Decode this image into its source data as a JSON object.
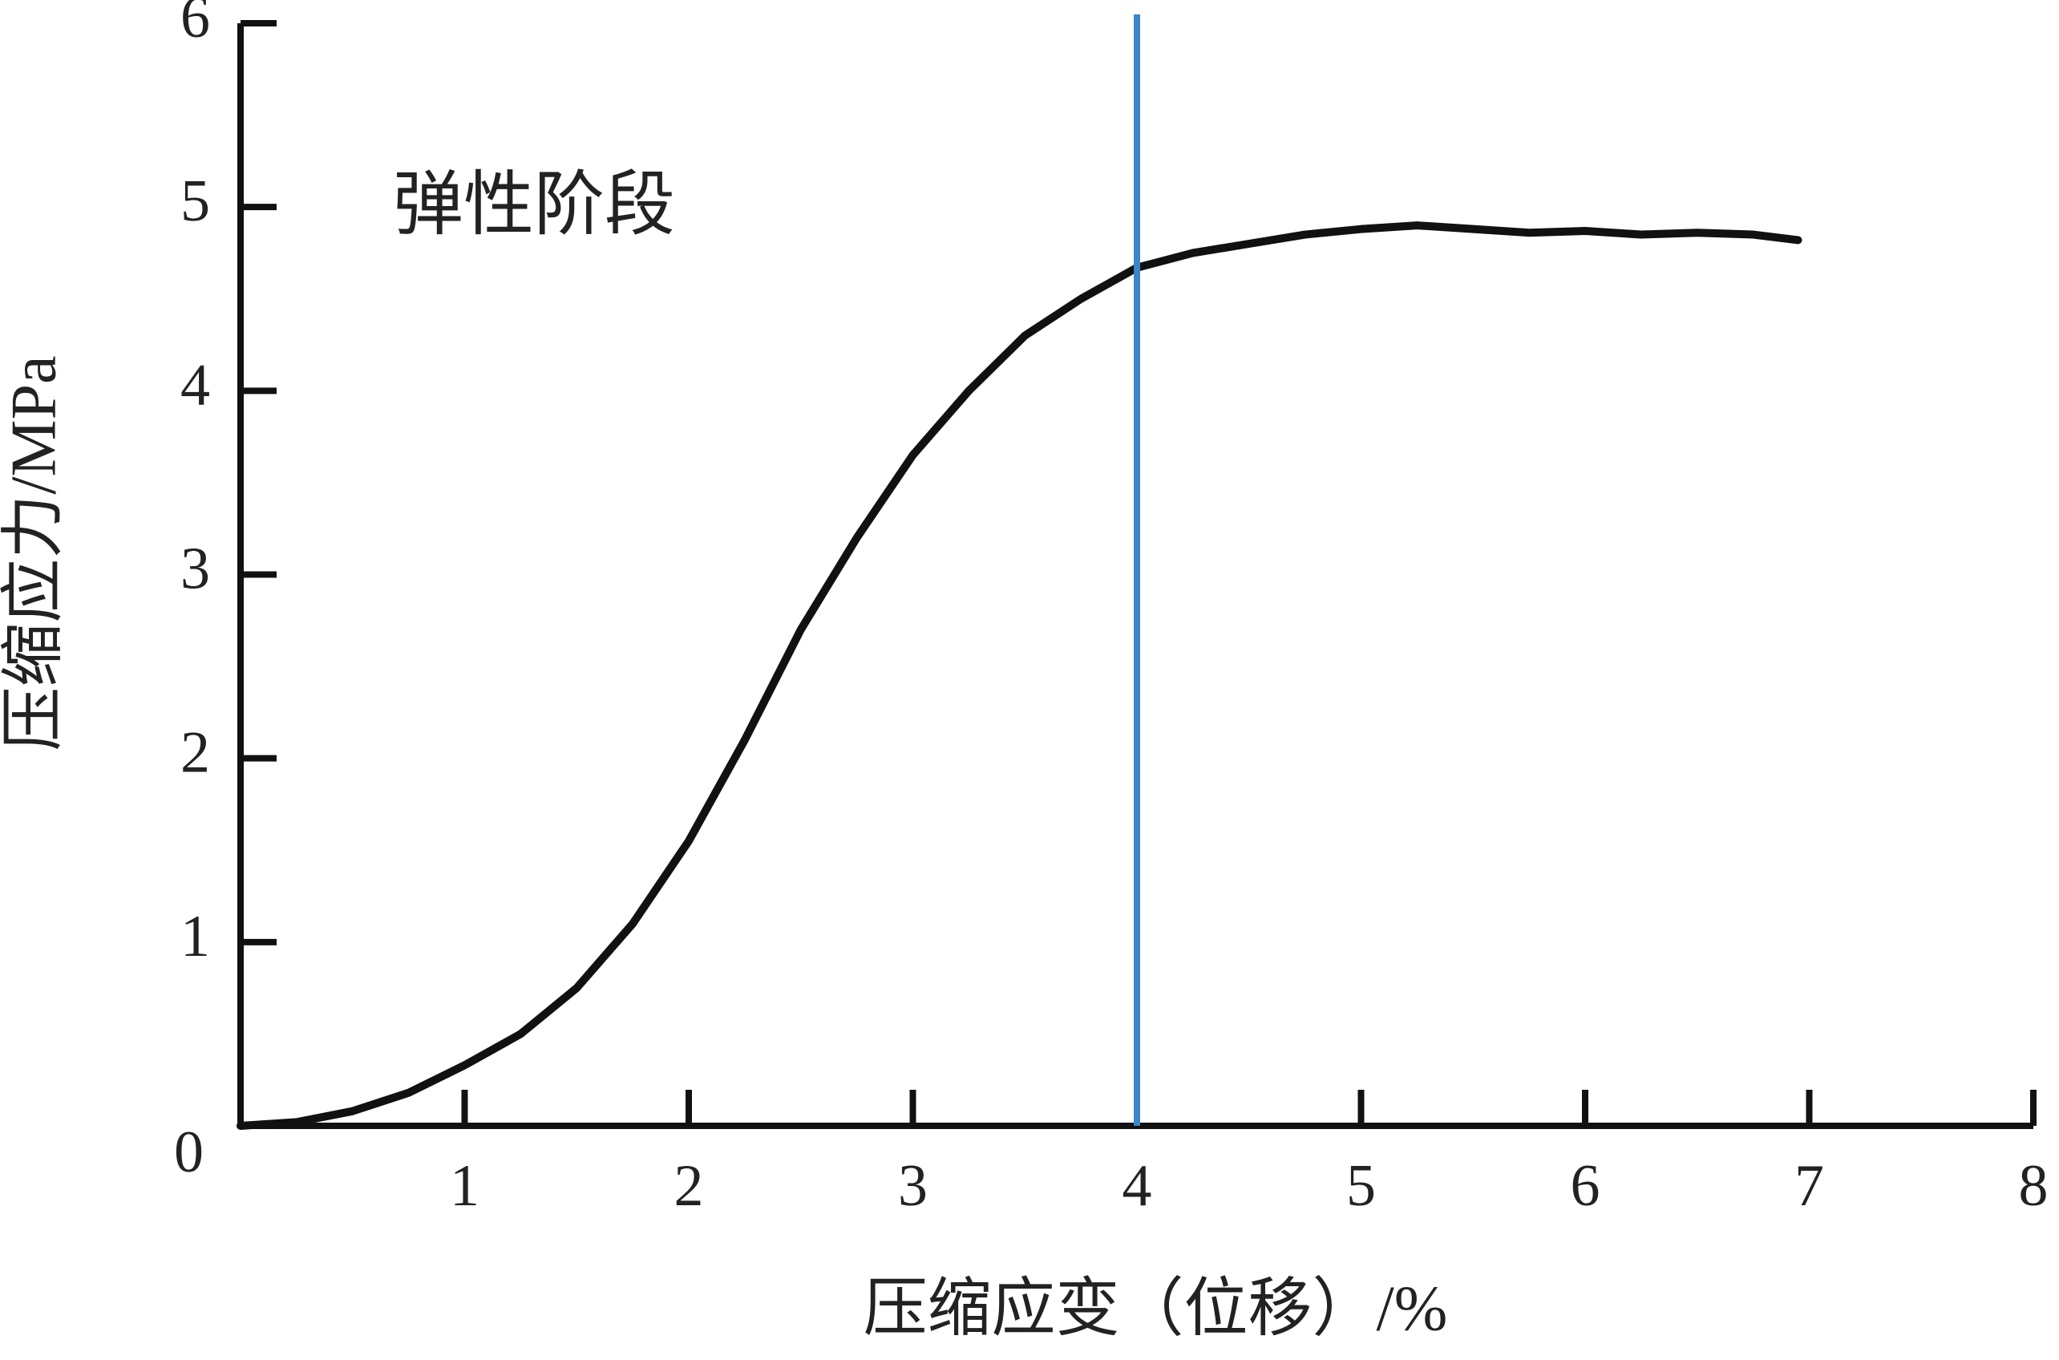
{
  "chart_data": {
    "type": "line",
    "xlabel": "压缩应变（位移）/%",
    "ylabel": "压缩应力/MPa",
    "annotation": "弹性阶段",
    "vline": 4,
    "vline_color": "#3a86c8",
    "x": [
      0,
      0.25,
      0.5,
      0.75,
      1,
      1.25,
      1.5,
      1.75,
      2,
      2.25,
      2.5,
      2.75,
      3,
      3.25,
      3.5,
      3.75,
      4,
      4.25,
      4.5,
      4.75,
      5,
      5.25,
      5.5,
      5.75,
      6,
      6.25,
      6.5,
      6.75,
      6.95
    ],
    "series": [
      {
        "color": "#111111",
        "values": [
          0,
          0.02,
          0.08,
          0.18,
          0.33,
          0.5,
          0.75,
          1.1,
          1.55,
          2.1,
          2.7,
          3.2,
          3.65,
          4.0,
          4.3,
          4.5,
          4.67,
          4.75,
          4.8,
          4.85,
          4.88,
          4.9,
          4.88,
          4.86,
          4.87,
          4.85,
          4.86,
          4.85,
          4.82
        ]
      }
    ],
    "xlim": [
      0,
      8
    ],
    "xticks": [
      1,
      2,
      3,
      4,
      5,
      6,
      7,
      8
    ],
    "ylim": [
      0,
      6
    ],
    "yticks": [
      0,
      1,
      2,
      3,
      4,
      5,
      6
    ]
  }
}
